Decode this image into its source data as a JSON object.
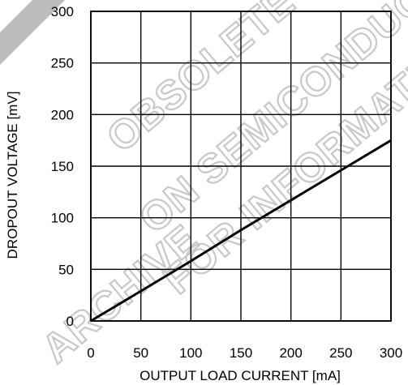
{
  "chart_data": {
    "type": "line",
    "title": "",
    "xlabel": "OUTPUT LOAD CURRENT [mA]",
    "ylabel": "DROPOUT VOLTAGE [mV]",
    "xlim": [
      0,
      300
    ],
    "ylim": [
      0,
      300
    ],
    "x_ticks": [
      "0",
      "50",
      "100",
      "150",
      "200",
      "250",
      "300"
    ],
    "y_ticks": [
      "0",
      "50",
      "100",
      "150",
      "200",
      "250",
      "300"
    ],
    "grid": true,
    "legend": "none",
    "series": [
      {
        "x": [
          0,
          50,
          100,
          150,
          200,
          250,
          300
        ],
        "y": [
          0,
          29,
          58,
          88,
          117,
          146,
          175
        ]
      }
    ],
    "line_color": "#000000",
    "grid_color": "#000000"
  },
  "watermark": {
    "lines": [
      "OBSOLETE",
      "ON SEMICONDUCTOR",
      "FOR INFORMATION",
      "ARCHIVE"
    ],
    "color": "#c8c8c8"
  }
}
